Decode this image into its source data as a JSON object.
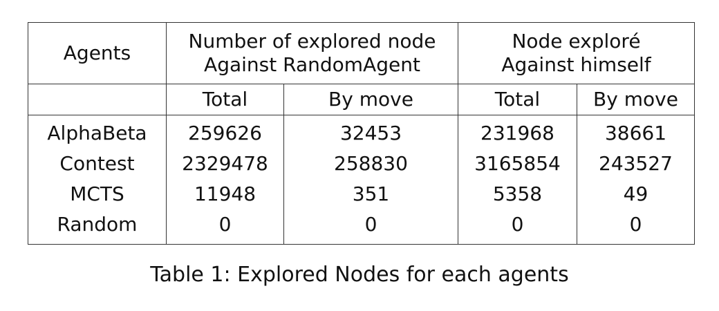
{
  "table": {
    "header": {
      "agents": "Agents",
      "group1": {
        "line1": "Number of explored node",
        "line2": "Against RandomAgent"
      },
      "group2": {
        "line1": "Node exploré",
        "line2": "Against himself"
      },
      "sub": [
        "Total",
        "By move",
        "Total",
        "By move"
      ]
    },
    "rows": [
      {
        "agent": "AlphaBeta",
        "values": [
          "259626",
          "32453",
          "231968",
          "38661"
        ]
      },
      {
        "agent": "Contest",
        "values": [
          "2329478",
          "258830",
          "3165854",
          "243527"
        ]
      },
      {
        "agent": "MCTS",
        "values": [
          "11948",
          "351",
          "5358",
          "49"
        ]
      },
      {
        "agent": "Random",
        "values": [
          "0",
          "0",
          "0",
          "0"
        ]
      }
    ]
  },
  "caption": "Table 1: Explored Nodes for each agents"
}
